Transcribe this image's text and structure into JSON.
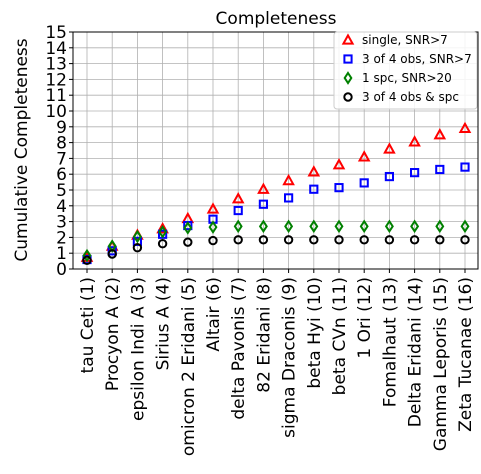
{
  "chart_data": {
    "type": "scatter",
    "title": "Completeness",
    "xlabel": "",
    "ylabel": "Cumulative Completeness",
    "ylim": [
      0,
      15
    ],
    "yticks": [
      0,
      1,
      2,
      3,
      4,
      5,
      6,
      7,
      8,
      9,
      10,
      11,
      12,
      13,
      14,
      15
    ],
    "grid": true,
    "legend_position": "top-right",
    "categories": [
      "tau Ceti (1)",
      "Procyon A (2)",
      "epsilon Indi A (3)",
      "Sirius A (4)",
      "omicron 2 Eridani (5)",
      "Altair (6)",
      "delta Pavonis (7)",
      "82 Eridani (8)",
      "sigma Draconis (9)",
      "beta Hyi (10)",
      "beta CVn (11)",
      "1 Ori (12)",
      "Fomalhaut (13)",
      "Delta Eridani (14)",
      "Gamma Leporis (15)",
      "Zeta Tucanae (16)"
    ],
    "series": [
      {
        "name": "single, SNR>7",
        "marker": "triangle",
        "color": "#ff0000",
        "values": [
          0.75,
          1.45,
          2.15,
          2.55,
          3.2,
          3.8,
          4.45,
          5.05,
          5.6,
          6.15,
          6.6,
          7.1,
          7.6,
          8.05,
          8.5,
          8.9
        ]
      },
      {
        "name": "3 of 4 obs, SNR>7",
        "marker": "square",
        "color": "#0000ff",
        "values": [
          0.6,
          1.15,
          1.75,
          2.2,
          2.75,
          3.15,
          3.7,
          4.1,
          4.5,
          5.05,
          5.15,
          5.45,
          5.85,
          6.1,
          6.3,
          6.45
        ]
      },
      {
        "name": "1 spc, SNR>20",
        "marker": "diamond",
        "color": "#008000",
        "values": [
          0.85,
          1.45,
          2.05,
          2.35,
          2.6,
          2.65,
          2.7,
          2.7,
          2.7,
          2.7,
          2.7,
          2.7,
          2.7,
          2.7,
          2.7,
          2.7
        ]
      },
      {
        "name": "3 of 4 obs & spc",
        "marker": "circle",
        "color": "#000000",
        "values": [
          0.55,
          0.95,
          1.35,
          1.6,
          1.7,
          1.8,
          1.85,
          1.85,
          1.85,
          1.85,
          1.85,
          1.85,
          1.85,
          1.85,
          1.85,
          1.85
        ]
      }
    ]
  }
}
